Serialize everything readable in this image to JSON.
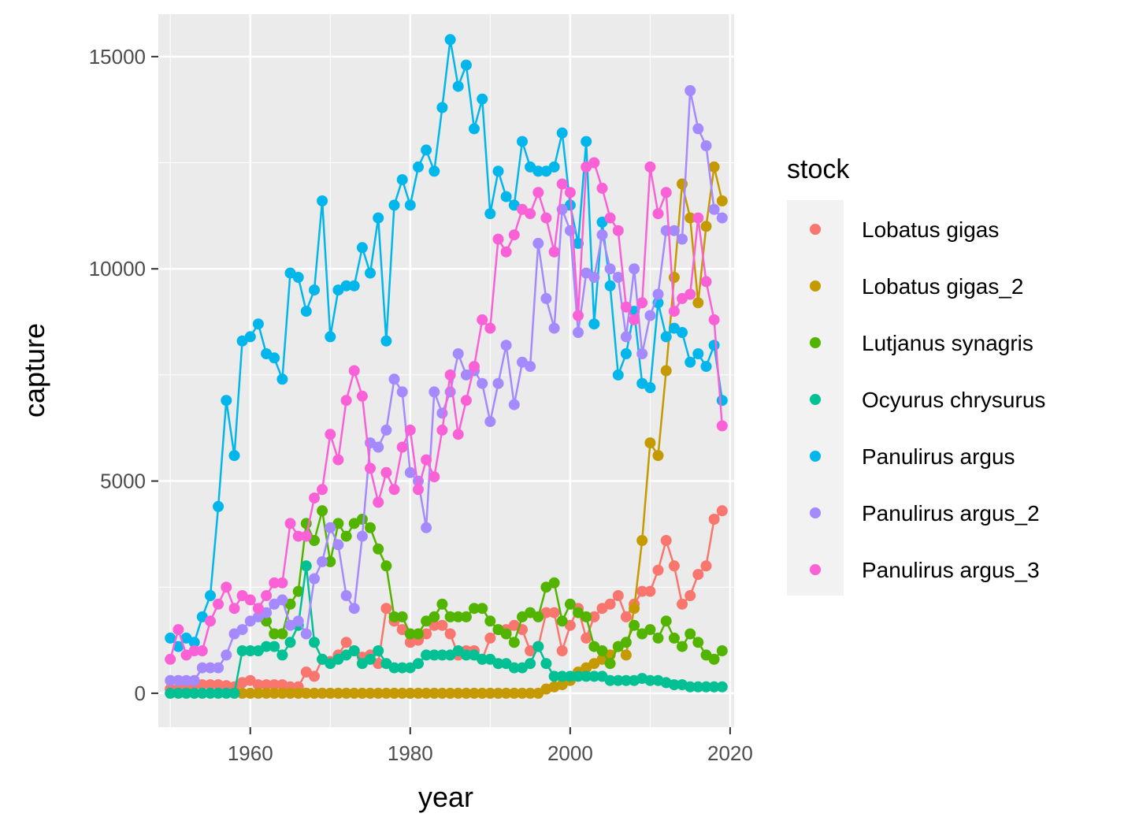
{
  "chart_data": {
    "type": "line",
    "xlabel": "year",
    "ylabel": "capture",
    "xlim": [
      1948.5,
      2020.5
    ],
    "ylim": [
      -800,
      16000
    ],
    "xticks": [
      1960,
      1980,
      2000,
      2020
    ],
    "yticks": [
      0,
      5000,
      10000,
      15000
    ],
    "grid": true,
    "legend": {
      "title": "stock",
      "position": "right"
    },
    "series": [
      {
        "name": "Lobatus gigas",
        "color": "#F8766D",
        "x": [
          1950,
          1951,
          1952,
          1953,
          1954,
          1955,
          1956,
          1957,
          1958,
          1959,
          1960,
          1961,
          1962,
          1963,
          1964,
          1965,
          1966,
          1967,
          1968,
          1969,
          1970,
          1971,
          1972,
          1973,
          1974,
          1975,
          1976,
          1977,
          1978,
          1979,
          1980,
          1981,
          1982,
          1983,
          1984,
          1985,
          1986,
          1987,
          1988,
          1989,
          1990,
          1991,
          1992,
          1993,
          1994,
          1995,
          1996,
          1997,
          1998,
          1999,
          2000,
          2001,
          2002,
          2003,
          2004,
          2005,
          2006,
          2007,
          2008,
          2009,
          2010,
          2011,
          2012,
          2013,
          2014,
          2015,
          2016,
          2017,
          2018,
          2019
        ],
        "y": [
          100,
          100,
          150,
          200,
          200,
          200,
          200,
          180,
          150,
          250,
          300,
          200,
          200,
          200,
          200,
          150,
          150,
          500,
          400,
          800,
          750,
          900,
          1200,
          1000,
          850,
          900,
          700,
          2000,
          1700,
          1500,
          1200,
          1250,
          1400,
          1600,
          1600,
          1400,
          900,
          1000,
          1000,
          800,
          1300,
          1500,
          1500,
          1600,
          1500,
          1000,
          1100,
          1900,
          1900,
          1000,
          1600,
          2000,
          1300,
          1800,
          2000,
          2100,
          2300,
          1800,
          2100,
          2400,
          2400,
          2900,
          3600,
          3000,
          2100,
          2300,
          2800,
          3000,
          4100,
          4300
        ]
      },
      {
        "name": "Lobatus gigas_2",
        "color": "#C49A00",
        "x": [
          1959,
          1960,
          1961,
          1962,
          1963,
          1964,
          1965,
          1966,
          1967,
          1968,
          1969,
          1970,
          1971,
          1972,
          1973,
          1974,
          1975,
          1976,
          1977,
          1978,
          1979,
          1980,
          1981,
          1982,
          1983,
          1984,
          1985,
          1986,
          1987,
          1988,
          1989,
          1990,
          1991,
          1992,
          1993,
          1994,
          1995,
          1996,
          1997,
          1998,
          1999,
          2000,
          2001,
          2002,
          2003,
          2004,
          2005,
          2006,
          2007,
          2008,
          2009,
          2010,
          2011,
          2012,
          2013,
          2014,
          2015,
          2016,
          2017,
          2018,
          2019
        ],
        "y": [
          0,
          0,
          0,
          0,
          0,
          0,
          0,
          0,
          0,
          0,
          0,
          0,
          0,
          0,
          0,
          0,
          0,
          0,
          0,
          0,
          0,
          0,
          0,
          0,
          0,
          0,
          0,
          0,
          0,
          0,
          0,
          0,
          0,
          0,
          0,
          0,
          0,
          0,
          100,
          150,
          200,
          300,
          500,
          600,
          700,
          800,
          900,
          1100,
          900,
          2000,
          3600,
          5900,
          5600,
          7600,
          9800,
          12000,
          11200,
          9200,
          11000,
          12400,
          11600
        ]
      },
      {
        "name": "Lutjanus synagris",
        "color": "#53B400",
        "x": [
          1962,
          1963,
          1964,
          1965,
          1966,
          1967,
          1968,
          1969,
          1970,
          1971,
          1972,
          1973,
          1974,
          1975,
          1976,
          1977,
          1978,
          1979,
          1980,
          1981,
          1982,
          1983,
          1984,
          1985,
          1986,
          1987,
          1988,
          1989,
          1990,
          1991,
          1992,
          1993,
          1994,
          1995,
          1996,
          1997,
          1998,
          1999,
          2000,
          2001,
          2002,
          2003,
          2004,
          2005,
          2006,
          2007,
          2008,
          2009,
          2010,
          2011,
          2012,
          2013,
          2014,
          2015,
          2016,
          2017,
          2018,
          2019
        ],
        "y": [
          1700,
          1400,
          1400,
          2100,
          2400,
          4000,
          3600,
          4300,
          3100,
          4000,
          3700,
          4000,
          4100,
          3900,
          3400,
          3000,
          1800,
          1800,
          1400,
          1400,
          1700,
          1800,
          2100,
          1800,
          1800,
          1800,
          2000,
          2000,
          1700,
          1500,
          1400,
          1200,
          1800,
          1900,
          1800,
          2500,
          2600,
          1700,
          2100,
          1900,
          1800,
          1100,
          1000,
          700,
          1100,
          1200,
          1600,
          1400,
          1500,
          1300,
          1700,
          1300,
          1100,
          1400,
          1200,
          900,
          800,
          1000
        ]
      },
      {
        "name": "Ocyurus chrysurus",
        "color": "#00C094",
        "x": [
          1950,
          1951,
          1952,
          1953,
          1954,
          1955,
          1956,
          1957,
          1958,
          1959,
          1960,
          1961,
          1962,
          1963,
          1964,
          1965,
          1966,
          1967,
          1968,
          1969,
          1970,
          1971,
          1972,
          1973,
          1974,
          1975,
          1976,
          1977,
          1978,
          1979,
          1980,
          1981,
          1982,
          1983,
          1984,
          1985,
          1986,
          1987,
          1988,
          1989,
          1990,
          1991,
          1992,
          1993,
          1994,
          1995,
          1996,
          1997,
          1998,
          1999,
          2000,
          2001,
          2002,
          2003,
          2004,
          2005,
          2006,
          2007,
          2008,
          2009,
          2010,
          2011,
          2012,
          2013,
          2014,
          2015,
          2016,
          2017,
          2018,
          2019
        ],
        "y": [
          0,
          0,
          0,
          0,
          0,
          0,
          0,
          0,
          0,
          1000,
          1000,
          1000,
          1100,
          1100,
          900,
          1200,
          1600,
          3000,
          1200,
          800,
          700,
          800,
          900,
          1000,
          700,
          800,
          1000,
          700,
          600,
          600,
          600,
          700,
          900,
          900,
          900,
          900,
          1000,
          900,
          900,
          800,
          800,
          700,
          700,
          600,
          600,
          700,
          1100,
          700,
          400,
          400,
          400,
          400,
          400,
          400,
          400,
          300,
          300,
          300,
          300,
          350,
          300,
          300,
          250,
          200,
          200,
          150,
          150,
          150,
          150,
          150
        ]
      },
      {
        "name": "Panulirus argus",
        "color": "#00B6EB",
        "x": [
          1950,
          1951,
          1952,
          1953,
          1954,
          1955,
          1956,
          1957,
          1958,
          1959,
          1960,
          1961,
          1962,
          1963,
          1964,
          1965,
          1966,
          1967,
          1968,
          1969,
          1970,
          1971,
          1972,
          1973,
          1974,
          1975,
          1976,
          1977,
          1978,
          1979,
          1980,
          1981,
          1982,
          1983,
          1984,
          1985,
          1986,
          1987,
          1988,
          1989,
          1990,
          1991,
          1992,
          1993,
          1994,
          1995,
          1996,
          1997,
          1998,
          1999,
          2000,
          2001,
          2002,
          2003,
          2004,
          2005,
          2006,
          2007,
          2008,
          2009,
          2010,
          2011,
          2012,
          2013,
          2014,
          2015,
          2016,
          2017,
          2018,
          2019
        ],
        "y": [
          1300,
          1100,
          1300,
          1200,
          1800,
          2300,
          4400,
          6900,
          5600,
          8300,
          8400,
          8700,
          8000,
          7900,
          7400,
          9900,
          9800,
          9000,
          9500,
          11600,
          8400,
          9500,
          9600,
          9600,
          10500,
          9900,
          11200,
          8300,
          11500,
          12100,
          11500,
          12400,
          12800,
          12300,
          13800,
          15400,
          14300,
          14800,
          13300,
          14000,
          11300,
          12300,
          11700,
          11500,
          13000,
          12400,
          12300,
          12300,
          12400,
          13200,
          11500,
          10600,
          13000,
          8700,
          11100,
          9600,
          7500,
          8000,
          9000,
          7300,
          7200,
          9200,
          8400,
          8600,
          8500,
          7800,
          8000,
          7700,
          8200,
          6900
        ]
      },
      {
        "name": "Panulirus argus_2",
        "color": "#A58AFF",
        "x": [
          1950,
          1951,
          1952,
          1953,
          1954,
          1955,
          1956,
          1957,
          1958,
          1959,
          1960,
          1961,
          1962,
          1963,
          1964,
          1965,
          1966,
          1967,
          1968,
          1969,
          1970,
          1971,
          1972,
          1973,
          1974,
          1975,
          1976,
          1977,
          1978,
          1979,
          1980,
          1981,
          1982,
          1983,
          1984,
          1985,
          1986,
          1987,
          1988,
          1989,
          1990,
          1991,
          1992,
          1993,
          1994,
          1995,
          1996,
          1997,
          1998,
          1999,
          2000,
          2001,
          2002,
          2003,
          2004,
          2005,
          2006,
          2007,
          2008,
          2009,
          2010,
          2011,
          2012,
          2013,
          2014,
          2015,
          2016,
          2017,
          2018,
          2019
        ],
        "y": [
          300,
          300,
          300,
          300,
          600,
          600,
          600,
          900,
          1400,
          1500,
          1700,
          1800,
          1900,
          2100,
          2200,
          1600,
          1700,
          1400,
          2700,
          3100,
          3900,
          3500,
          2300,
          2000,
          3700,
          5900,
          5800,
          6200,
          7400,
          7100,
          5200,
          5000,
          3900,
          7100,
          6600,
          7100,
          8000,
          7500,
          7600,
          7300,
          6400,
          7300,
          8200,
          6800,
          7800,
          7700,
          10600,
          9300,
          8600,
          11400,
          10900,
          8500,
          9900,
          9800,
          10800,
          10000,
          9800,
          8400,
          10000,
          8000,
          8900,
          9400,
          10900,
          10900,
          10700,
          14200,
          13300,
          12900,
          11400,
          11200
        ]
      },
      {
        "name": "Panulirus argus_3",
        "color": "#FB61D7",
        "x": [
          1950,
          1951,
          1952,
          1953,
          1954,
          1955,
          1956,
          1957,
          1958,
          1959,
          1960,
          1961,
          1962,
          1963,
          1964,
          1965,
          1966,
          1967,
          1968,
          1969,
          1970,
          1971,
          1972,
          1973,
          1974,
          1975,
          1976,
          1977,
          1978,
          1979,
          1980,
          1981,
          1982,
          1983,
          1984,
          1985,
          1986,
          1987,
          1988,
          1989,
          1990,
          1991,
          1992,
          1993,
          1994,
          1995,
          1996,
          1997,
          1998,
          1999,
          2000,
          2001,
          2002,
          2003,
          2004,
          2005,
          2006,
          2007,
          2008,
          2009,
          2010,
          2011,
          2012,
          2013,
          2014,
          2015,
          2016,
          2017,
          2018,
          2019
        ],
        "y": [
          800,
          1500,
          900,
          1000,
          1000,
          1700,
          2100,
          2500,
          2000,
          2300,
          2200,
          2000,
          2300,
          2600,
          2600,
          4000,
          3700,
          3700,
          4600,
          4800,
          6100,
          5500,
          6900,
          7600,
          7000,
          5300,
          4500,
          5200,
          4800,
          5800,
          6200,
          4800,
          5500,
          5100,
          6200,
          7500,
          6100,
          6900,
          7700,
          8800,
          8600,
          10700,
          10400,
          10800,
          11400,
          11300,
          11800,
          11200,
          10400,
          12000,
          11800,
          8900,
          12400,
          12500,
          11900,
          11200,
          10900,
          9100,
          8800,
          9200,
          12400,
          11300,
          11800,
          9000,
          9300,
          9400,
          11200,
          9700,
          8800,
          6300
        ]
      }
    ]
  }
}
